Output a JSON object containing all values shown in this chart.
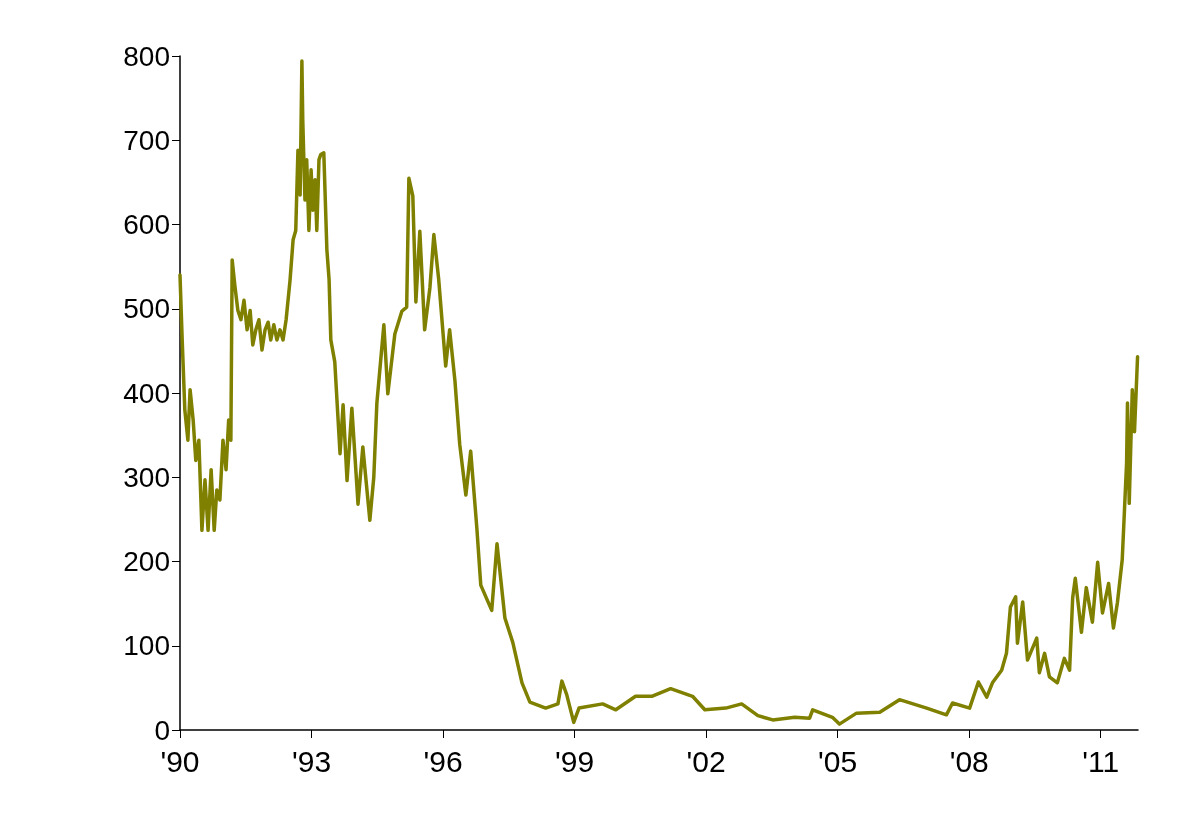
{
  "chart_data": {
    "type": "line",
    "x": [
      1990.0,
      1990.05,
      1990.11,
      1990.18,
      1990.23,
      1990.3,
      1990.36,
      1990.43,
      1990.5,
      1990.57,
      1990.64,
      1990.71,
      1990.78,
      1990.84,
      1990.91,
      1990.98,
      1991.05,
      1991.11,
      1991.16,
      1991.19,
      1991.25,
      1991.32,
      1991.39,
      1991.46,
      1991.53,
      1991.6,
      1991.66,
      1991.73,
      1991.8,
      1991.87,
      1991.94,
      1992.01,
      1992.07,
      1992.14,
      1992.21,
      1992.28,
      1992.35,
      1992.42,
      1992.51,
      1992.58,
      1992.64,
      1992.69,
      1992.74,
      1992.78,
      1992.8,
      1992.85,
      1992.89,
      1992.94,
      1992.99,
      1993.03,
      1993.08,
      1993.12,
      1993.17,
      1993.21,
      1993.28,
      1993.35,
      1993.4,
      1993.44,
      1993.53,
      1993.65,
      1993.72,
      1993.81,
      1993.92,
      1994.06,
      1994.17,
      1994.33,
      1994.42,
      1994.49,
      1994.65,
      1994.74,
      1994.9,
      1995.06,
      1995.17,
      1995.22,
      1995.31,
      1995.38,
      1995.47,
      1995.58,
      1995.7,
      1995.79,
      1995.9,
      1996.06,
      1996.15,
      1996.27,
      1996.38,
      1996.52,
      1996.63,
      1996.77,
      1996.86,
      1997.11,
      1997.23,
      1997.41,
      1997.59,
      1997.8,
      1997.98,
      1998.34,
      1998.62,
      1998.71,
      1998.82,
      1998.98,
      1999.1,
      1999.64,
      1999.94,
      2000.39,
      2000.76,
      2001.19,
      2001.69,
      2001.97,
      2002.45,
      2002.81,
      2003.18,
      2003.52,
      2004.02,
      2004.36,
      2004.43,
      2004.88,
      2005.04,
      2005.43,
      2005.96,
      2006.41,
      2007.03,
      2007.48,
      2007.62,
      2008.01,
      2008.21,
      2008.4,
      2008.53,
      2008.74,
      2008.85,
      2008.94,
      2009.06,
      2009.1,
      2009.22,
      2009.33,
      2009.54,
      2009.6,
      2009.72,
      2009.83,
      2010.01,
      2010.17,
      2010.29,
      2010.36,
      2010.42,
      2010.56,
      2010.67,
      2010.81,
      2010.93,
      2011.04,
      2011.18,
      2011.29,
      2011.38,
      2011.49,
      2011.59,
      2011.61,
      2011.65,
      2011.72,
      2011.77,
      2011.84
    ],
    "series": [
      {
        "color": "#808000",
        "values": [
          540,
          463,
          380,
          344,
          404,
          368,
          320,
          344,
          237,
          297,
          237,
          309,
          237,
          285,
          273,
          344,
          309,
          368,
          344,
          558,
          528,
          498,
          487,
          510,
          475,
          498,
          457,
          475,
          487,
          451,
          475,
          484,
          463,
          481,
          463,
          475,
          463,
          487,
          534,
          582,
          593,
          688,
          635,
          794,
          724,
          629,
          677,
          593,
          665,
          617,
          653,
          593,
          677,
          683,
          685,
          570,
          535,
          463,
          437,
          328,
          386,
          296,
          382,
          268,
          336,
          249,
          300,
          388,
          481,
          399,
          470,
          497,
          502,
          655,
          634,
          508,
          592,
          475,
          525,
          588,
          535,
          432,
          475,
          415,
          339,
          279,
          331,
          240,
          172,
          142,
          221,
          133,
          104,
          56,
          33,
          26,
          31,
          58,
          42,
          9,
          26,
          31,
          24,
          40,
          40,
          49,
          40,
          24,
          26,
          31,
          17,
          12,
          15,
          14,
          24,
          15,
          7,
          20,
          21,
          36,
          26,
          18,
          32,
          26,
          57,
          39,
          56,
          71,
          91,
          146,
          158,
          103,
          152,
          83,
          109,
          68,
          91,
          63,
          56,
          85,
          71,
          157,
          180,
          116,
          169,
          128,
          199,
          139,
          174,
          121,
          151,
          202,
          317,
          388,
          269,
          404,
          354,
          443
        ]
      }
    ],
    "xlim": [
      1990,
      2011.85
    ],
    "xticks": [
      {
        "value": 1990,
        "label": "'90"
      },
      {
        "value": 1993,
        "label": "'93"
      },
      {
        "value": 1996,
        "label": "'96"
      },
      {
        "value": 1999,
        "label": "'99"
      },
      {
        "value": 2002,
        "label": "'02"
      },
      {
        "value": 2005,
        "label": "'05"
      },
      {
        "value": 2008,
        "label": "'08"
      },
      {
        "value": 2011,
        "label": "'11"
      }
    ],
    "ylim": [
      0,
      800
    ],
    "yticks": [
      0,
      100,
      200,
      300,
      400,
      500,
      600,
      700,
      800
    ],
    "grid": false,
    "marker": "none",
    "line_style": "solid"
  }
}
